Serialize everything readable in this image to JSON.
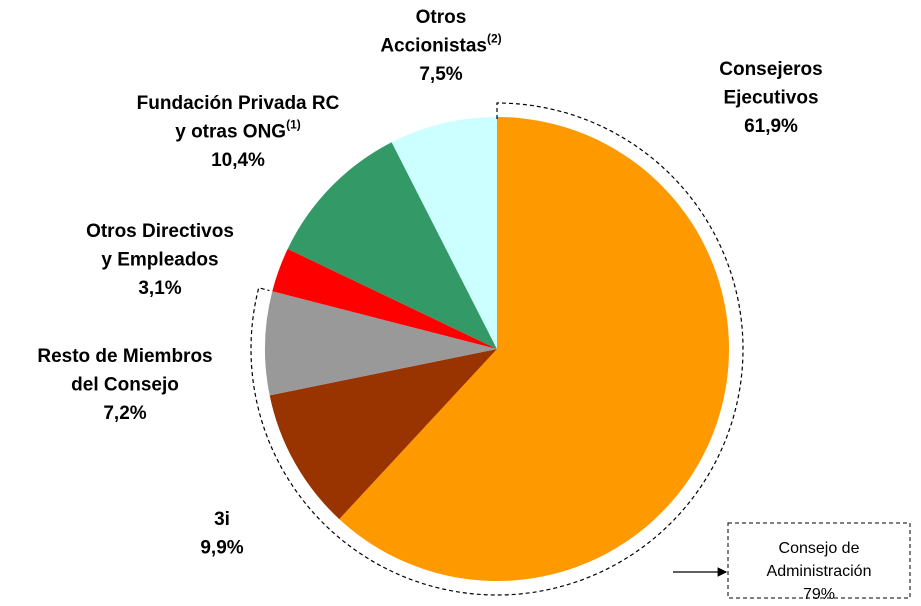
{
  "chart_data": {
    "type": "pie",
    "categories": [
      "Consejeros Ejecutivos",
      "3i",
      "Resto de Miembros del Consejo",
      "Otros Directivos y Empleados",
      "Fundación Privada RC y otras ONG",
      "Otros Accionistas"
    ],
    "category_notes": [
      null,
      null,
      null,
      null,
      "(1)",
      "(2)"
    ],
    "values": [
      61.9,
      9.9,
      7.2,
      3.1,
      10.4,
      7.5
    ],
    "value_labels": [
      "61,9%",
      "9,9%",
      "7,2%",
      "3,1%",
      "10,4%",
      "7,5%"
    ],
    "colors": [
      "#ff9900",
      "#993300",
      "#999999",
      "#ff0000",
      "#339966",
      "#ccffff"
    ],
    "group": {
      "name": "Consejo de Administración",
      "value": 79,
      "value_label": "79%"
    }
  }
}
